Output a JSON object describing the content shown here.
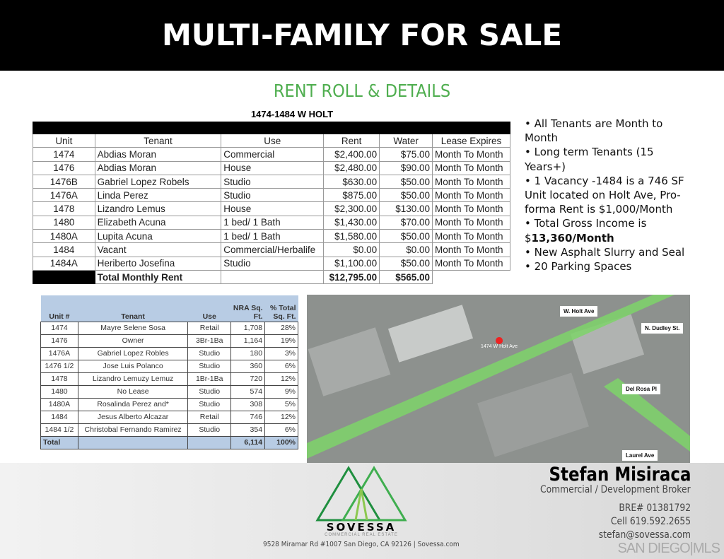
{
  "header": {
    "title": "MULTI-FAMILY FOR SALE"
  },
  "section_title": "RENT ROLL & DETAILS",
  "rent_roll": {
    "title": "1474-1484 W HOLT",
    "columns": [
      "Unit",
      "Tenant",
      "Use",
      "Rent",
      "Water",
      "Lease Expires"
    ],
    "rows": [
      [
        "1474",
        "Abdias Moran",
        "Commercial",
        "$2,400.00",
        "$75.00",
        "Month To Month"
      ],
      [
        "1476",
        "Abdias Moran",
        "House",
        "$2,480.00",
        "$90.00",
        "Month To Month"
      ],
      [
        "1476B",
        "Gabriel Lopez Robels",
        "Studio",
        "$630.00",
        "$50.00",
        "Month To Month"
      ],
      [
        "1476A",
        "Linda Perez",
        "Studio",
        "$875.00",
        "$50.00",
        "Month To Month"
      ],
      [
        "1478",
        "Lizandro Lemus",
        "House",
        "$2,300.00",
        "$130.00",
        "Month To Month"
      ],
      [
        "1480",
        "Elizabeth Acuna",
        "1 bed/ 1 Bath",
        "$1,430.00",
        "$70.00",
        "Month To Month"
      ],
      [
        "1480A",
        "Lupita Acuna",
        "1 bed/ 1 Bath",
        "$1,580.00",
        "$50.00",
        "Month To Month"
      ],
      [
        "1484",
        "Vacant",
        "Commercial/Herbalife",
        "$0.00",
        "$0.00",
        "Month To Month"
      ],
      [
        "1484A",
        "Heriberto Josefina",
        "Studio",
        "$1,100.00",
        "$50.00",
        "Month To Month"
      ]
    ],
    "total_label": "Total Monthly Rent",
    "total_rent": "$12,795.00",
    "total_water": "$565.00"
  },
  "bullets": {
    "b1": "• All Tenants are Month to Month",
    "b2": "• Long term Tenants (15 Years+)",
    "b3": "• 1 Vacancy -1484 is a 746 SF Unit located on Holt Ave, Pro-forma Rent is $1,000/Month",
    "b4_prefix": "• Total Gross Income is $",
    "b4_bold": "13,360/Month",
    "b5": "• New Asphalt Slurry and Seal",
    "b6": "• 20 Parking Spaces"
  },
  "sqft_table": {
    "columns": [
      "Unit #",
      "Tenant",
      "Use",
      "NRA Sq. Ft.",
      "% Total Sq. Ft."
    ],
    "rows": [
      [
        "1474",
        "Mayre Selene Sosa",
        "Retail",
        "1,708",
        "28%"
      ],
      [
        "1476",
        "Owner",
        "3Br-1Ba",
        "1,164",
        "19%"
      ],
      [
        "1476A",
        "Gabriel Lopez Robles",
        "Studio",
        "180",
        "3%"
      ],
      [
        "1476 1/2",
        "Jose Luis Polanco",
        "Studio",
        "360",
        "6%"
      ],
      [
        "1478",
        "Lizandro Lemuzy Lemuz",
        "1Br-1Ba",
        "720",
        "12%"
      ],
      [
        "1480",
        "No Lease",
        "Studio",
        "574",
        "9%"
      ],
      [
        "1480A",
        "Rosalinda Perez and*",
        "Studio",
        "308",
        "5%"
      ],
      [
        "1484",
        "Jesus Alberto Alcazar",
        "Retail",
        "746",
        "12%"
      ],
      [
        "1484 1/2",
        "Christobal Fernando Ramirez",
        "Studio",
        "354",
        "6%"
      ]
    ],
    "total_label": "Total",
    "total_sqft": "6,114",
    "total_pct": "100%"
  },
  "map": {
    "labels": {
      "holt": "W. Holt Ave",
      "dudley": "N. Dudley St.",
      "delrosa": "Del Rosa Pl",
      "laurel": "Laurel Ave",
      "pin": "1474 W Holt Ave"
    },
    "road_color": "#7ed36a"
  },
  "footer": {
    "name": "Stefan Misiraca",
    "role": "Commercial / Development Broker",
    "bre": "BRE# 01381792",
    "cell": "Cell 619.592.2655",
    "email": "stefan@sovessa.com",
    "brand": "SOVESSA",
    "brand_sub": "COMMERCIAL REAL ESTATE",
    "address": "9528 Miramar Rd #1007 San Diego, CA 92126  |  Sovessa.com",
    "mls": "SAN DIEGO|MLS"
  }
}
